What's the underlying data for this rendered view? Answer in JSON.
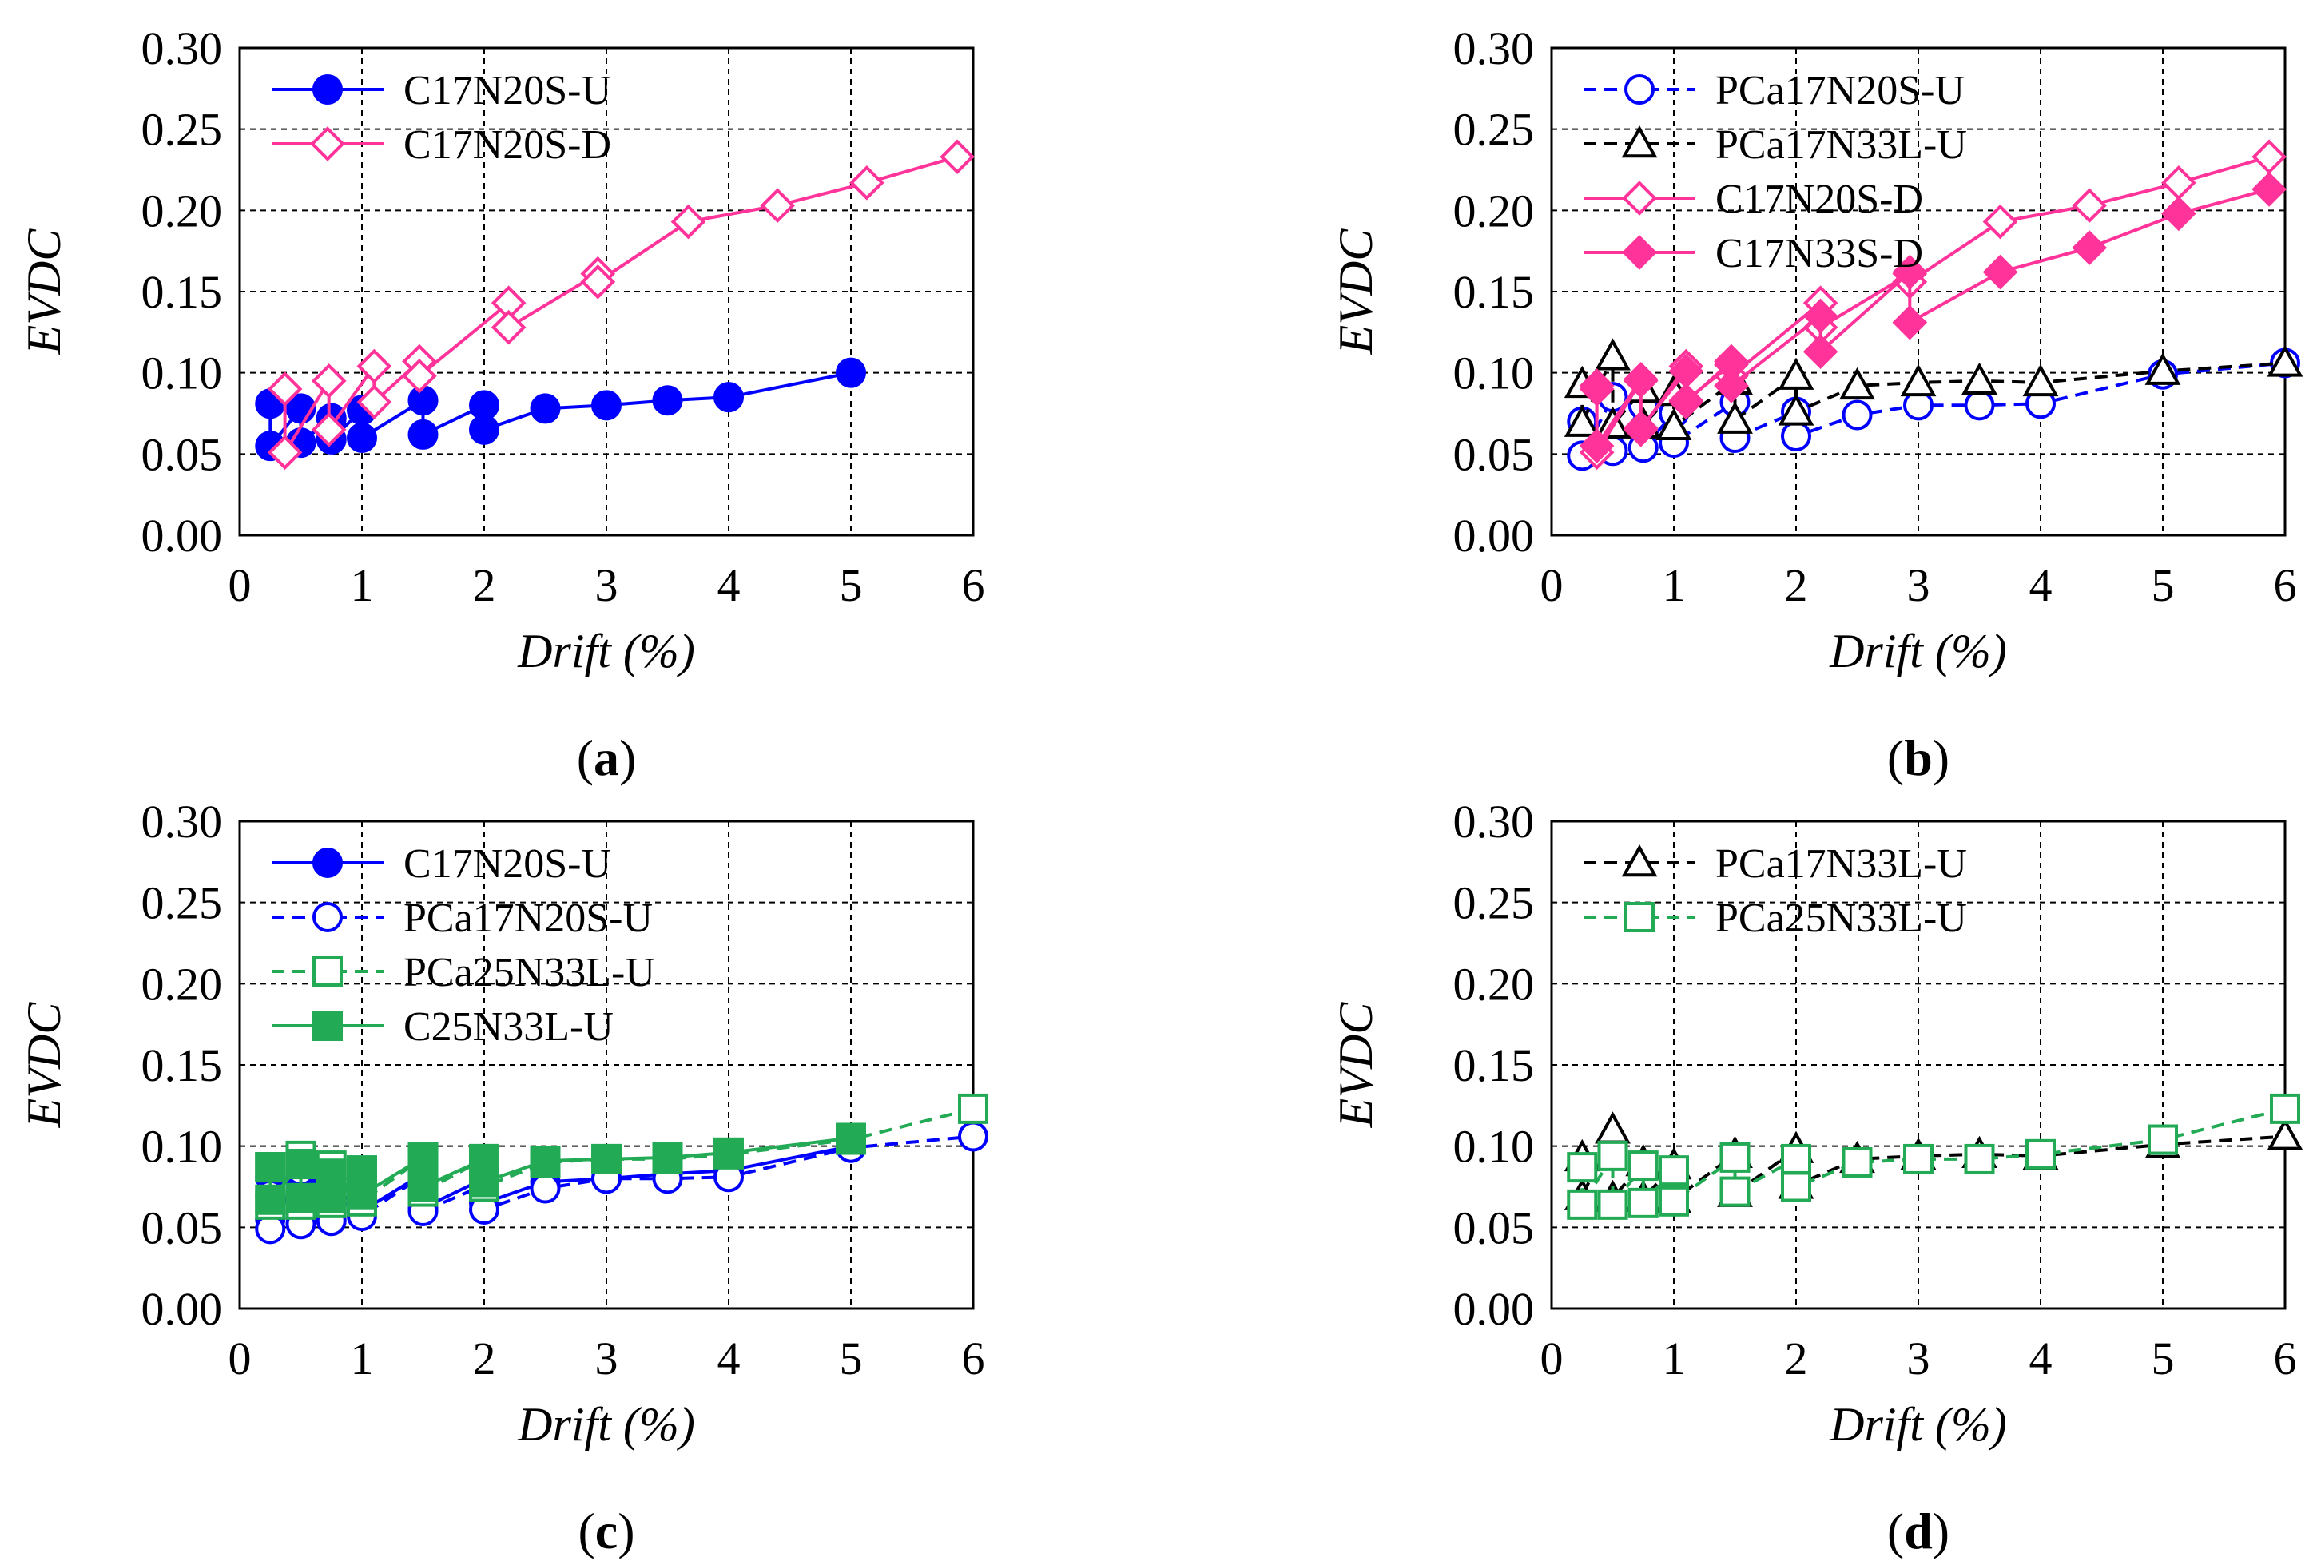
{
  "figure": {
    "yticks": [
      "0.00",
      "0.05",
      "0.10",
      "0.15",
      "0.20",
      "0.25",
      "0.30"
    ],
    "xticks": [
      "0",
      "1",
      "2",
      "3",
      "4",
      "5",
      "6"
    ]
  },
  "chart_data": [
    {
      "type": "line",
      "panel": "a",
      "caption": "(a)",
      "caption_letter": "a",
      "xlabel": "Drift (%)",
      "ylabel": "EVDC",
      "xlim": [
        0,
        6
      ],
      "ylim": [
        0,
        0.3
      ],
      "grid": true,
      "legend": "top-left",
      "series": [
        {
          "name": "C17N20S-U",
          "color": "#0000ff",
          "dashed": false,
          "marker": "circle-filled",
          "x": [
            0.25,
            0.25,
            0.5,
            0.5,
            0.75,
            0.75,
            1.0,
            1.0,
            1.5,
            1.5,
            2.0,
            2.0,
            2.5,
            3.0,
            3.5,
            4.0,
            5.0
          ],
          "y": [
            0.081,
            0.055,
            0.078,
            0.057,
            0.072,
            0.059,
            0.077,
            0.06,
            0.083,
            0.062,
            0.08,
            0.065,
            0.078,
            0.08,
            0.083,
            0.085,
            0.1
          ]
        },
        {
          "name": "C17N20S-D",
          "color": "#ff3399",
          "dashed": false,
          "marker": "diamond-open",
          "x": [
            0.37,
            0.37,
            0.73,
            0.73,
            1.1,
            1.1,
            1.47,
            1.47,
            2.2,
            2.2,
            2.93,
            2.93,
            3.67,
            4.4,
            5.13,
            5.87
          ],
          "y": [
            0.09,
            0.051,
            0.095,
            0.065,
            0.104,
            0.082,
            0.107,
            0.098,
            0.143,
            0.128,
            0.161,
            0.156,
            0.193,
            0.203,
            0.217,
            0.233
          ]
        }
      ]
    },
    {
      "type": "line",
      "panel": "b",
      "caption": "(b)",
      "caption_letter": "b",
      "xlabel": "Drift (%)",
      "ylabel": "EVDC",
      "xlim": [
        0,
        6
      ],
      "ylim": [
        0,
        0.3
      ],
      "grid": true,
      "legend": "top-left",
      "series": [
        {
          "name": "PCa17N20S-U",
          "color": "#0000ff",
          "dashed": true,
          "marker": "circle-open",
          "x": [
            0.25,
            0.25,
            0.5,
            0.5,
            0.75,
            0.75,
            1.0,
            1.0,
            1.5,
            1.5,
            2.0,
            2.0,
            2.5,
            3.0,
            3.5,
            4.0,
            5.0,
            6.0
          ],
          "y": [
            0.07,
            0.049,
            0.085,
            0.052,
            0.08,
            0.054,
            0.075,
            0.057,
            0.082,
            0.06,
            0.076,
            0.061,
            0.074,
            0.08,
            0.08,
            0.081,
            0.099,
            0.106
          ]
        },
        {
          "name": "PCa17N33L-U",
          "color": "#000000",
          "dashed": true,
          "marker": "triangle-open",
          "x": [
            0.25,
            0.25,
            0.5,
            0.5,
            0.75,
            0.75,
            1.0,
            1.0,
            1.5,
            1.5,
            2.0,
            2.0,
            2.5,
            3.0,
            3.5,
            4.0,
            5.0,
            6.0
          ],
          "y": [
            0.093,
            0.069,
            0.11,
            0.068,
            0.09,
            0.068,
            0.088,
            0.067,
            0.095,
            0.071,
            0.098,
            0.076,
            0.092,
            0.094,
            0.095,
            0.094,
            0.101,
            0.106
          ]
        },
        {
          "name": "C17N20S-D",
          "color": "#ff3399",
          "dashed": false,
          "marker": "diamond-open",
          "x": [
            0.37,
            0.37,
            0.73,
            0.73,
            1.1,
            1.1,
            1.47,
            1.47,
            2.2,
            2.2,
            2.93,
            2.93,
            3.67,
            4.4,
            5.13,
            5.87
          ],
          "y": [
            0.09,
            0.051,
            0.095,
            0.065,
            0.104,
            0.082,
            0.107,
            0.098,
            0.143,
            0.128,
            0.161,
            0.156,
            0.193,
            0.203,
            0.217,
            0.233
          ]
        },
        {
          "name": "C17N33S-D",
          "color": "#ff3399",
          "dashed": false,
          "marker": "diamond-filled",
          "x": [
            0.37,
            0.37,
            0.73,
            0.73,
            1.1,
            1.1,
            1.47,
            1.47,
            2.2,
            2.2,
            2.93,
            2.93,
            3.67,
            4.4,
            5.13,
            5.87
          ],
          "y": [
            0.092,
            0.055,
            0.096,
            0.066,
            0.101,
            0.083,
            0.105,
            0.092,
            0.135,
            0.113,
            0.162,
            0.131,
            0.162,
            0.177,
            0.198,
            0.213
          ]
        }
      ]
    },
    {
      "type": "line",
      "panel": "c",
      "caption": "(c)",
      "caption_letter": "c",
      "xlabel": "Drift (%)",
      "ylabel": "EVDC",
      "xlim": [
        0,
        6
      ],
      "ylim": [
        0,
        0.3
      ],
      "grid": true,
      "legend": "top-left",
      "series": [
        {
          "name": "C17N20S-U",
          "color": "#0000ff",
          "dashed": false,
          "marker": "circle-filled",
          "x": [
            0.25,
            0.25,
            0.5,
            0.5,
            0.75,
            0.75,
            1.0,
            1.0,
            1.5,
            1.5,
            2.0,
            2.0,
            2.5,
            3.0,
            3.5,
            4.0,
            5.0
          ],
          "y": [
            0.081,
            0.055,
            0.078,
            0.057,
            0.072,
            0.059,
            0.077,
            0.06,
            0.083,
            0.062,
            0.08,
            0.065,
            0.078,
            0.08,
            0.083,
            0.085,
            0.1
          ]
        },
        {
          "name": "PCa17N20S-U",
          "color": "#0000ff",
          "dashed": true,
          "marker": "circle-open",
          "x": [
            0.25,
            0.25,
            0.5,
            0.5,
            0.75,
            0.75,
            1.0,
            1.0,
            1.5,
            1.5,
            2.0,
            2.0,
            2.5,
            3.0,
            3.5,
            4.0,
            5.0,
            6.0
          ],
          "y": [
            0.07,
            0.049,
            0.085,
            0.052,
            0.08,
            0.054,
            0.075,
            0.057,
            0.082,
            0.06,
            0.076,
            0.061,
            0.074,
            0.08,
            0.08,
            0.081,
            0.099,
            0.106
          ]
        },
        {
          "name": "PCa25N33L-U",
          "color": "#22aa55",
          "dashed": true,
          "marker": "square-open",
          "x": [
            0.25,
            0.25,
            0.5,
            0.5,
            0.75,
            0.75,
            1.0,
            1.0,
            1.5,
            1.5,
            2.0,
            2.0,
            2.5,
            3.0,
            3.5,
            4.0,
            5.0,
            6.0
          ],
          "y": [
            0.087,
            0.064,
            0.094,
            0.064,
            0.088,
            0.065,
            0.085,
            0.066,
            0.093,
            0.072,
            0.092,
            0.075,
            0.09,
            0.092,
            0.092,
            0.095,
            0.104,
            0.123
          ]
        },
        {
          "name": "C25N33L-U",
          "color": "#22aa55",
          "dashed": false,
          "marker": "square-filled",
          "x": [
            0.25,
            0.25,
            0.5,
            0.5,
            0.75,
            0.75,
            1.0,
            1.0,
            1.5,
            1.5,
            2.0,
            2.0,
            2.5,
            3.0,
            3.5,
            4.0,
            5.0
          ],
          "y": [
            0.087,
            0.067,
            0.089,
            0.068,
            0.083,
            0.068,
            0.085,
            0.07,
            0.093,
            0.075,
            0.092,
            0.078,
            0.091,
            0.092,
            0.093,
            0.096,
            0.105
          ]
        }
      ]
    },
    {
      "type": "line",
      "panel": "d",
      "caption": "(d)",
      "caption_letter": "d",
      "xlabel": "Drift (%)",
      "ylabel": "EVDC",
      "xlim": [
        0,
        6
      ],
      "ylim": [
        0,
        0.3
      ],
      "grid": true,
      "legend": "top-left",
      "series": [
        {
          "name": "PCa17N33L-U",
          "color": "#000000",
          "dashed": true,
          "marker": "triangle-open",
          "x": [
            0.25,
            0.25,
            0.5,
            0.5,
            0.75,
            0.75,
            1.0,
            1.0,
            1.5,
            1.5,
            2.0,
            2.0,
            2.5,
            3.0,
            3.5,
            4.0,
            5.0,
            6.0
          ],
          "y": [
            0.093,
            0.069,
            0.11,
            0.068,
            0.09,
            0.068,
            0.088,
            0.067,
            0.095,
            0.071,
            0.098,
            0.076,
            0.092,
            0.094,
            0.095,
            0.094,
            0.101,
            0.106
          ]
        },
        {
          "name": "PCa25N33L-U",
          "color": "#22aa55",
          "dashed": true,
          "marker": "square-open",
          "x": [
            0.25,
            0.25,
            0.5,
            0.5,
            0.75,
            0.75,
            1.0,
            1.0,
            1.5,
            1.5,
            2.0,
            2.0,
            2.5,
            3.0,
            3.5,
            4.0,
            5.0,
            6.0
          ],
          "y": [
            0.087,
            0.064,
            0.094,
            0.064,
            0.088,
            0.065,
            0.085,
            0.066,
            0.093,
            0.072,
            0.092,
            0.075,
            0.09,
            0.092,
            0.092,
            0.095,
            0.104,
            0.123
          ]
        }
      ]
    }
  ]
}
